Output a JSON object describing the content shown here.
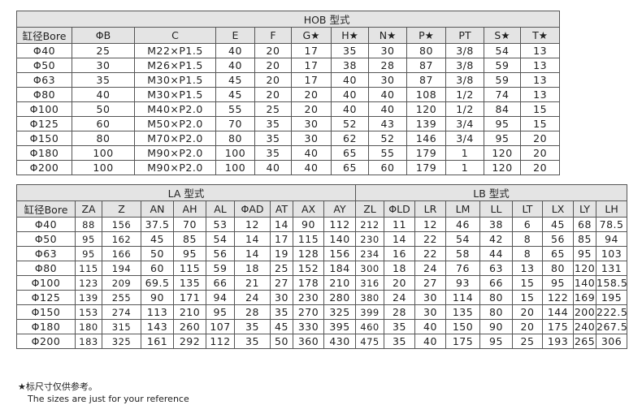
{
  "hob": {
    "title": "HOB 型式",
    "headers": [
      "缸径Bore",
      "ΦB",
      "C",
      "E",
      "F",
      "G★",
      "H★",
      "N★",
      "P★",
      "PT",
      "S★",
      "T★"
    ],
    "rows": [
      [
        "Φ40",
        "25",
        "M22×P1.5",
        "40",
        "20",
        "17",
        "35",
        "30",
        "80",
        "3/8",
        "54",
        "13"
      ],
      [
        "Φ50",
        "30",
        "M26×P1.5",
        "40",
        "20",
        "17",
        "38",
        "28",
        "87",
        "3/8",
        "59",
        "13"
      ],
      [
        "Φ63",
        "35",
        "M30×P1.5",
        "45",
        "20",
        "17",
        "40",
        "30",
        "87",
        "3/8",
        "59",
        "13"
      ],
      [
        "Φ80",
        "40",
        "M30×P1.5",
        "45",
        "20",
        "20",
        "40",
        "40",
        "108",
        "1/2",
        "74",
        "13"
      ],
      [
        "Φ100",
        "50",
        "M40×P2.0",
        "55",
        "25",
        "20",
        "40",
        "40",
        "120",
        "1/2",
        "84",
        "15"
      ],
      [
        "Φ125",
        "60",
        "M50×P2.0",
        "70",
        "35",
        "30",
        "52",
        "43",
        "139",
        "3/4",
        "95",
        "15"
      ],
      [
        "Φ150",
        "80",
        "M70×P2.0",
        "80",
        "35",
        "30",
        "62",
        "52",
        "146",
        "3/4",
        "95",
        "20"
      ],
      [
        "Φ180",
        "100",
        "M90×P2.0",
        "100",
        "35",
        "40",
        "65",
        "55",
        "179",
        "1",
        "120",
        "20"
      ],
      [
        "Φ200",
        "100",
        "M90×P2.0",
        "100",
        "40",
        "40",
        "65",
        "60",
        "179",
        "1",
        "120",
        "20"
      ]
    ]
  },
  "la_lb": {
    "la_title": "LA 型式",
    "lb_title": "LB 型式",
    "headers": [
      "缸径Bore",
      "ZA",
      "Z",
      "AN",
      "AH",
      "AL",
      "ΦAD",
      "AT",
      "AX",
      "AY",
      "ZL",
      "ΦLD",
      "LR",
      "LM",
      "LL",
      "LT",
      "LX",
      "LY",
      "LH"
    ],
    "rows": [
      [
        "Φ40",
        "88",
        "156",
        "37.5",
        "70",
        "53",
        "12",
        "14",
        "90",
        "112",
        "212",
        "11",
        "12",
        "46",
        "38",
        "6",
        "45",
        "68",
        "78.5"
      ],
      [
        "Φ50",
        "95",
        "162",
        "45",
        "85",
        "54",
        "14",
        "17",
        "115",
        "140",
        "230",
        "14",
        "22",
        "54",
        "42",
        "8",
        "56",
        "85",
        "94"
      ],
      [
        "Φ63",
        "95",
        "166",
        "50",
        "95",
        "56",
        "14",
        "19",
        "128",
        "156",
        "234",
        "16",
        "22",
        "58",
        "44",
        "8",
        "65",
        "95",
        "103"
      ],
      [
        "Φ80",
        "115",
        "194",
        "60",
        "115",
        "59",
        "18",
        "25",
        "152",
        "184",
        "300",
        "18",
        "24",
        "76",
        "63",
        "13",
        "80",
        "120",
        "131"
      ],
      [
        "Φ100",
        "123",
        "209",
        "69.5",
        "135",
        "66",
        "21",
        "27",
        "178",
        "210",
        "316",
        "20",
        "27",
        "93",
        "66",
        "15",
        "95",
        "140",
        "158.5"
      ],
      [
        "Φ125",
        "139",
        "255",
        "90",
        "171",
        "94",
        "24",
        "30",
        "230",
        "280",
        "380",
        "24",
        "30",
        "114",
        "80",
        "15",
        "122",
        "169",
        "195"
      ],
      [
        "Φ150",
        "153",
        "274",
        "113",
        "210",
        "95",
        "28",
        "35",
        "270",
        "325",
        "399",
        "28",
        "30",
        "135",
        "80",
        "20",
        "144",
        "200",
        "222.5"
      ],
      [
        "Φ180",
        "180",
        "315",
        "143",
        "260",
        "107",
        "35",
        "45",
        "330",
        "395",
        "460",
        "35",
        "40",
        "150",
        "90",
        "20",
        "175",
        "240",
        "267.5"
      ],
      [
        "Φ200",
        "183",
        "325",
        "161",
        "292",
        "112",
        "35",
        "50",
        "360",
        "430",
        "475",
        "35",
        "40",
        "175",
        "95",
        "25",
        "193",
        "265",
        "306"
      ]
    ]
  },
  "notes": {
    "cn": "★标尺寸仅供参考。",
    "en": "The sizes are just for your reference"
  }
}
